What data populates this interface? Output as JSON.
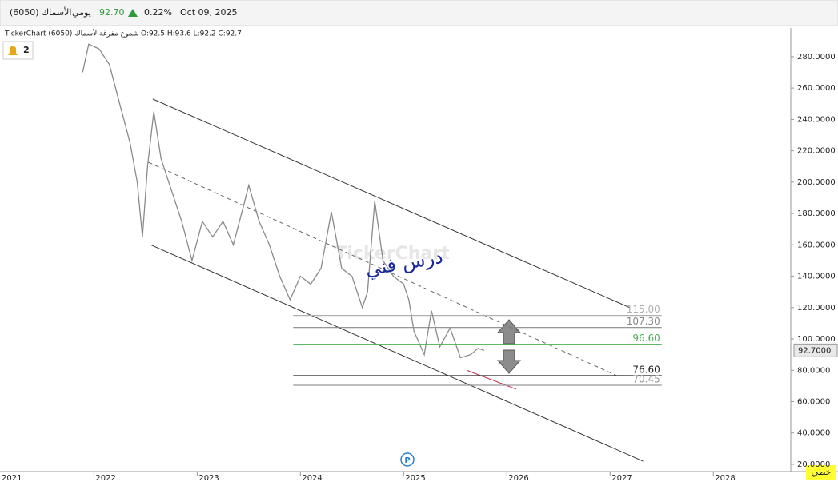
{
  "header": {
    "symbol": "الأسماك (6050)",
    "period": "يومي",
    "price": "92.70",
    "change": "0.22%",
    "date": "Oct 09, 2025",
    "info_left": "TickerChart الأسماك (6050)",
    "info_style": "شموع مفرغة",
    "ohlc": "O:92.5  H:93.6  L:92.2  C:92.7",
    "alerts": "2",
    "mode": "خطي"
  },
  "chart_data": {
    "type": "line",
    "watermark": "TickerChart",
    "annotation": "درس فني",
    "marker": "P",
    "color": "#8a8a8a",
    "x": [
      2021.89,
      2021.95,
      2022.05,
      2022.15,
      2022.25,
      2022.35,
      2022.42,
      2022.47,
      2022.52,
      2022.58,
      2022.65,
      2022.75,
      2022.85,
      2022.95,
      2023.05,
      2023.15,
      2023.25,
      2023.35,
      2023.45,
      2023.5,
      2023.6,
      2023.7,
      2023.8,
      2023.9,
      2024.0,
      2024.1,
      2024.2,
      2024.3,
      2024.4,
      2024.5,
      2024.6,
      2024.65,
      2024.72,
      2024.8,
      2024.9,
      2025.0,
      2025.05,
      2025.1,
      2025.2,
      2025.27,
      2025.35,
      2025.45,
      2025.55,
      2025.65,
      2025.72,
      2025.78
    ],
    "values": [
      270,
      288,
      285,
      275,
      250,
      225,
      200,
      165,
      210,
      245,
      215,
      195,
      175,
      150,
      175,
      165,
      175,
      160,
      185,
      198,
      175,
      160,
      140,
      125,
      140,
      135,
      145,
      181,
      145,
      140,
      120,
      130,
      188,
      150,
      140,
      135,
      125,
      105,
      90,
      118,
      95,
      107,
      88,
      90,
      94,
      92.7
    ],
    "last_price": {
      "value": 92.7,
      "label": "92.7000"
    },
    "trendlines": [
      {
        "x": [
          2022.57,
          2027.19
        ],
        "y": [
          253,
          120
        ],
        "color": "#333333",
        "dashed": false
      },
      {
        "x": [
          2022.55,
          2027.32
        ],
        "y": [
          160,
          22
        ],
        "color": "#333333",
        "dashed": false
      },
      {
        "x": [
          2022.53,
          2027.1
        ],
        "y": [
          212.6,
          75.5
        ],
        "color": "#666666",
        "dashed": true
      },
      {
        "x": [
          2025.61,
          2026.09
        ],
        "y": [
          80,
          68
        ],
        "color": "#c0304a",
        "dashed": false
      }
    ],
    "level_xlim": [
      2023.93,
      2027.5
    ],
    "levels": [
      {
        "value": 115,
        "label": "115.00",
        "color": "#b0b0b0"
      },
      {
        "value": 107.3,
        "label": "107.30",
        "color": "#888888"
      },
      {
        "value": 96.6,
        "label": "96.60",
        "color": "#4caf50"
      },
      {
        "value": 76.6,
        "label": "76.60",
        "color": "#222222"
      },
      {
        "value": 70.45,
        "label": "70.45",
        "color": "#999999"
      }
    ],
    "xlim": [
      2021.09,
      2028.75
    ],
    "xticks": [
      2021,
      2022,
      2023,
      2024,
      2025,
      2026,
      2027,
      2028
    ],
    "ylim": [
      15.4,
      298.3
    ],
    "yticks": [
      {
        "value": 20,
        "label": "20.0000"
      },
      {
        "value": 40,
        "label": "40.0000"
      },
      {
        "value": 60,
        "label": "60.0000"
      },
      {
        "value": 80,
        "label": "80.0000"
      },
      {
        "value": 100,
        "label": "100.0000"
      },
      {
        "value": 120,
        "label": "120.0000"
      },
      {
        "value": 140,
        "label": "140.0000"
      },
      {
        "value": 160,
        "label": "160.0000"
      },
      {
        "value": 180,
        "label": "180.0000"
      },
      {
        "value": 200,
        "label": "200.0000"
      },
      {
        "value": 220,
        "label": "220.0000"
      },
      {
        "value": 240,
        "label": "240.0000"
      },
      {
        "value": 260,
        "label": "260.0000"
      },
      {
        "value": 280,
        "label": "280.0000"
      }
    ]
  }
}
